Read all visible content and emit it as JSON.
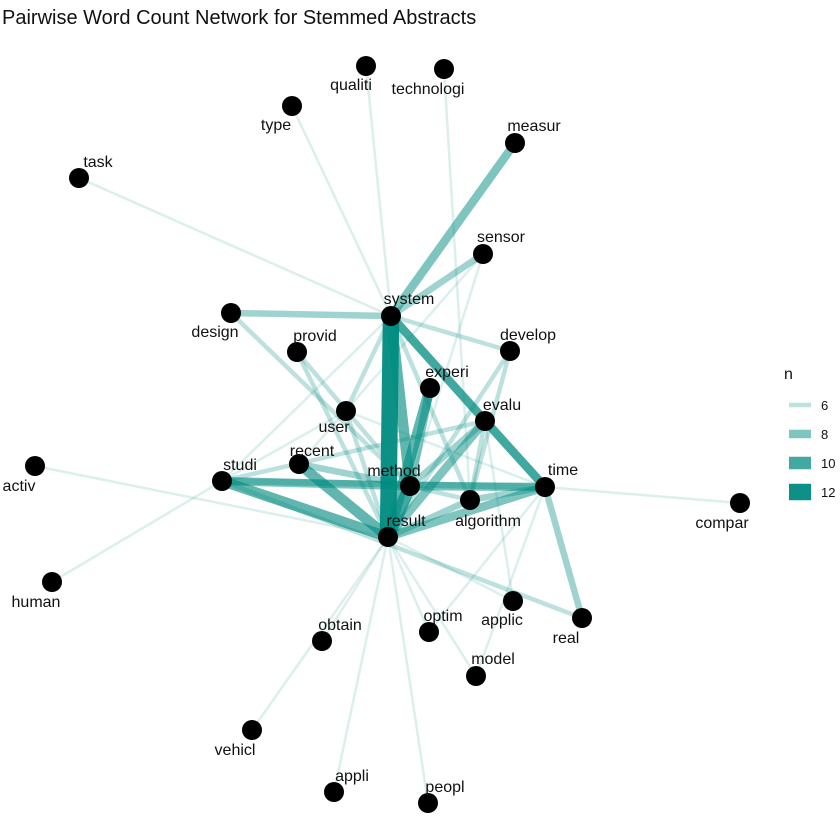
{
  "title": "Pairwise Word Count Network for Stemmed Abstracts",
  "edge_color": "#008B80",
  "node_color": "#000000",
  "legend": {
    "title": "n",
    "items": [
      {
        "label": "6",
        "value": 6
      },
      {
        "label": "8",
        "value": 8
      },
      {
        "label": "10",
        "value": 10
      },
      {
        "label": "12",
        "value": 12
      }
    ]
  },
  "nodes": [
    {
      "id": "qualiti",
      "label": "qualiti"
    },
    {
      "id": "technologi",
      "label": "technologi"
    },
    {
      "id": "type",
      "label": "type"
    },
    {
      "id": "measur",
      "label": "measur"
    },
    {
      "id": "task",
      "label": "task"
    },
    {
      "id": "sensor",
      "label": "sensor"
    },
    {
      "id": "system",
      "label": "system"
    },
    {
      "id": "design",
      "label": "design"
    },
    {
      "id": "provid",
      "label": "provid"
    },
    {
      "id": "develop",
      "label": "develop"
    },
    {
      "id": "experi",
      "label": "experi"
    },
    {
      "id": "evalu",
      "label": "evalu"
    },
    {
      "id": "user",
      "label": "user"
    },
    {
      "id": "recent",
      "label": "recent"
    },
    {
      "id": "studi",
      "label": "studi"
    },
    {
      "id": "method",
      "label": "method"
    },
    {
      "id": "time",
      "label": "time"
    },
    {
      "id": "activ",
      "label": "activ"
    },
    {
      "id": "algorithm",
      "label": "algorithm"
    },
    {
      "id": "result",
      "label": "result"
    },
    {
      "id": "compar",
      "label": "compar"
    },
    {
      "id": "human",
      "label": "human"
    },
    {
      "id": "applic",
      "label": "applic"
    },
    {
      "id": "real",
      "label": "real"
    },
    {
      "id": "optim",
      "label": "optim"
    },
    {
      "id": "obtain",
      "label": "obtain"
    },
    {
      "id": "model",
      "label": "model"
    },
    {
      "id": "vehicl",
      "label": "vehicl"
    },
    {
      "id": "appli",
      "label": "appli"
    },
    {
      "id": "peopl",
      "label": "peopl"
    }
  ],
  "edges": [
    {
      "source": "system",
      "target": "result",
      "n": 12
    },
    {
      "source": "system",
      "target": "method",
      "n": 9
    },
    {
      "source": "system",
      "target": "measur",
      "n": 8
    },
    {
      "source": "system",
      "target": "evalu",
      "n": 8
    },
    {
      "source": "system",
      "target": "time",
      "n": 8
    },
    {
      "source": "system",
      "target": "sensor",
      "n": 7
    },
    {
      "source": "system",
      "target": "design",
      "n": 7
    },
    {
      "source": "system",
      "target": "develop",
      "n": 6
    },
    {
      "source": "system",
      "target": "type",
      "n": 5
    },
    {
      "source": "system",
      "target": "qualiti",
      "n": 5
    },
    {
      "source": "system",
      "target": "task",
      "n": 5
    },
    {
      "source": "system",
      "target": "studi",
      "n": 5
    },
    {
      "source": "system",
      "target": "user",
      "n": 6
    },
    {
      "source": "system",
      "target": "algorithm",
      "n": 6
    },
    {
      "source": "result",
      "target": "method",
      "n": 10
    },
    {
      "source": "result",
      "target": "experi",
      "n": 9
    },
    {
      "source": "result",
      "target": "evalu",
      "n": 8
    },
    {
      "source": "result",
      "target": "time",
      "n": 8
    },
    {
      "source": "result",
      "target": "studi",
      "n": 9
    },
    {
      "source": "result",
      "target": "recent",
      "n": 9
    },
    {
      "source": "result",
      "target": "algorithm",
      "n": 7
    },
    {
      "source": "result",
      "target": "provid",
      "n": 6
    },
    {
      "source": "result",
      "target": "user",
      "n": 6
    },
    {
      "source": "result",
      "target": "develop",
      "n": 6
    },
    {
      "source": "result",
      "target": "obtain",
      "n": 5
    },
    {
      "source": "result",
      "target": "vehicl",
      "n": 5
    },
    {
      "source": "result",
      "target": "appli",
      "n": 5
    },
    {
      "source": "result",
      "target": "peopl",
      "n": 5
    },
    {
      "source": "result",
      "target": "model",
      "n": 5
    },
    {
      "source": "result",
      "target": "optim",
      "n": 5
    },
    {
      "source": "result",
      "target": "applic",
      "n": 5
    },
    {
      "source": "result",
      "target": "activ",
      "n": 5
    },
    {
      "source": "method",
      "target": "time",
      "n": 8
    },
    {
      "source": "method",
      "target": "studi",
      "n": 8
    },
    {
      "source": "method",
      "target": "experi",
      "n": 8
    },
    {
      "source": "method",
      "target": "evalu",
      "n": 7
    },
    {
      "source": "method",
      "target": "recent",
      "n": 7
    },
    {
      "source": "method",
      "target": "algorithm",
      "n": 6
    },
    {
      "source": "method",
      "target": "provid",
      "n": 6
    },
    {
      "source": "method",
      "target": "design",
      "n": 6
    },
    {
      "source": "method",
      "target": "sensor",
      "n": 5
    },
    {
      "source": "evalu",
      "target": "time",
      "n": 8
    },
    {
      "source": "evalu",
      "target": "algorithm",
      "n": 6
    },
    {
      "source": "evalu",
      "target": "studi",
      "n": 6
    },
    {
      "source": "evalu",
      "target": "applic",
      "n": 5
    },
    {
      "source": "time",
      "target": "studi",
      "n": 7
    },
    {
      "source": "time",
      "target": "algorithm",
      "n": 7
    },
    {
      "source": "time",
      "target": "real",
      "n": 7
    },
    {
      "source": "time",
      "target": "compar",
      "n": 5
    },
    {
      "source": "time",
      "target": "optim",
      "n": 5
    },
    {
      "source": "time",
      "target": "model",
      "n": 5
    },
    {
      "source": "time",
      "target": "user",
      "n": 5
    },
    {
      "source": "studi",
      "target": "real",
      "n": 6
    },
    {
      "source": "studi",
      "target": "human",
      "n": 5
    },
    {
      "source": "studi",
      "target": "user",
      "n": 5
    },
    {
      "source": "algorithm",
      "target": "develop",
      "n": 6
    },
    {
      "source": "algorithm",
      "target": "technologi",
      "n": 5
    },
    {
      "source": "recent",
      "target": "sensor",
      "n": 5
    }
  ]
}
